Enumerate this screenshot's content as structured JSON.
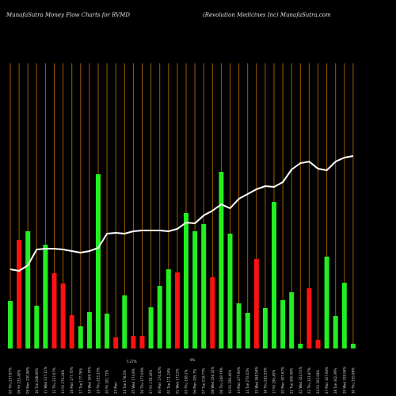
{
  "header": {
    "left": "MunafaSutra  Money Flow  Charts for RVMD",
    "right": "(Revolution  Medicines Inc) MunafaSutra.com"
  },
  "chart_data": {
    "type": "bar",
    "title": "MunafaSutra  Money Flow  Charts for RVMD",
    "subtitle": "(Revolution  Medicines Inc) MunafaSutra.com",
    "colors": {
      "up": "#22ee22",
      "down": "#ff1111",
      "line": "#ffffff",
      "grid": "#a05a00",
      "background": "#000000"
    },
    "categories": [
      "05 Thu 237.87%",
      "06 Fri 233.40%",
      "09 Mon 230.96%",
      "10 Tue 248.60%",
      "11 Wed 217.11%",
      "12 Thu 227.67%",
      "13 Fri 274.24%",
      "16 Mon 177.75%",
      "17 Tue 177.76%",
      "18 Wed 169.70%",
      "19 Thu 253.33%",
      "20 Fri 201.71%",
      "23 Mon",
      "24 Tue 178.5%",
      "25 Wed 174.8%",
      "26 Thu 177.04%",
      "27 Fri 178.16%",
      "30 Mon 174.42%",
      "01 Tue 171.24%",
      "02 Wed 173.5%",
      "03 Thu 198.1%",
      "06 Mon 205.7%",
      "07 Tue 219.77%",
      "08 Wed 226.32%",
      "09 Thu 249.79%",
      "10 Fri 259.40%",
      "13 Mon 277.93%",
      "14 Tue 270.41%",
      "15 Wed 268.54%",
      "16 Thu 262.55%",
      "17 Fri 290.45%",
      "20 Mon 307.67%",
      "21 Tue 306.49%",
      "22 Wed 322.01%",
      "23 Thu 331.87%",
      "24 Fri 303.94%",
      "27 Mon 327.94%",
      "28 Tue 342.39%",
      "29 Wed 339.94%",
      "30 Thu 335.98%"
    ],
    "values": [
      60,
      137,
      148,
      54,
      131,
      95,
      82,
      42,
      28,
      46,
      220,
      44,
      14,
      67,
      16,
      16,
      52,
      79,
      100,
      96,
      171,
      148,
      157,
      90,
      223,
      145,
      57,
      45,
      113,
      51,
      185,
      61,
      71,
      6,
      76,
      11,
      116,
      41,
      83,
      6
    ],
    "direction": [
      "up",
      "down",
      "up",
      "up",
      "up",
      "down",
      "down",
      "down",
      "up",
      "up",
      "up",
      "up",
      "down",
      "up",
      "down",
      "down",
      "up",
      "up",
      "up",
      "down",
      "up",
      "up",
      "up",
      "down",
      "up",
      "up",
      "up",
      "up",
      "down",
      "up",
      "up",
      "up",
      "up",
      "up",
      "down",
      "down",
      "up",
      "up",
      "up",
      "up"
    ],
    "line_values": [
      100,
      98,
      105,
      125,
      126,
      126,
      125,
      123,
      121,
      123,
      127,
      145,
      146,
      145,
      148,
      149,
      149,
      149,
      148,
      151,
      159,
      158,
      168,
      174,
      182,
      177,
      189,
      195,
      201,
      205,
      204,
      210,
      226,
      234,
      236,
      227,
      225,
      236,
      241,
      243
    ],
    "ylim": [
      0,
      360
    ],
    "annotations": [
      "5.27%",
      "6%"
    ],
    "grid": "vertical lines at each bar"
  }
}
